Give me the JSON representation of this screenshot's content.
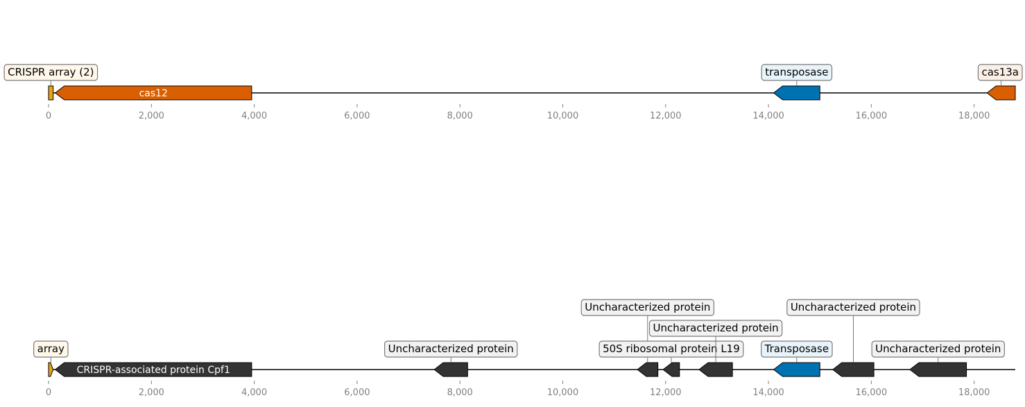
{
  "tracks": [
    {
      "id": "top",
      "axis": {
        "min": 0,
        "max": 18800,
        "ticks": [
          0,
          2000,
          4000,
          6000,
          8000,
          10000,
          12000,
          14000,
          16000,
          18000
        ],
        "tick_labels": [
          "0",
          "2,000",
          "4,000",
          "6,000",
          "8,000",
          "10,000",
          "12,000",
          "14,000",
          "16,000",
          "18,000"
        ]
      },
      "features": [
        {
          "name": "CRISPR array (2)",
          "start": 0,
          "end": 90,
          "strand": 0,
          "color": "#E8A317",
          "label": "CRISPR array (2)",
          "label_inside": false,
          "label_level": 0,
          "label_fill": "#FFF8EA"
        },
        {
          "name": "cas12",
          "start": 130,
          "end": 3950,
          "strand": -1,
          "color": "#D95F02",
          "label": "cas12",
          "label_inside": true
        },
        {
          "name": "transposase",
          "start": 14100,
          "end": 15000,
          "strand": -1,
          "color": "#0072B2",
          "label": "transposase",
          "label_inside": false,
          "label_level": 0,
          "label_fill": "#E8F3FA"
        },
        {
          "name": "cas13a",
          "start": 18250,
          "end": 18800,
          "strand": -1,
          "color": "#D95F02",
          "label": "cas13a",
          "label_inside": false,
          "label_level": 0,
          "label_fill": "#FCF0E6"
        }
      ]
    },
    {
      "id": "bottom",
      "axis": {
        "min": 0,
        "max": 18800,
        "ticks": [
          0,
          2000,
          4000,
          6000,
          8000,
          10000,
          12000,
          14000,
          16000,
          18000
        ],
        "tick_labels": [
          "0",
          "2,000",
          "4,000",
          "6,000",
          "8,000",
          "10,000",
          "12,000",
          "14,000",
          "16,000",
          "18,000"
        ]
      },
      "features": [
        {
          "name": "array",
          "start": 0,
          "end": 90,
          "strand": 1,
          "color": "#E8A317",
          "label": "array",
          "label_inside": false,
          "label_level": 0,
          "label_fill": "#FFF8EA"
        },
        {
          "name": "CRISPR-associated protein Cpf1",
          "start": 130,
          "end": 3950,
          "strand": -1,
          "color": "#333333",
          "label": "CRISPR-associated protein Cpf1",
          "label_inside": true
        },
        {
          "name": "Uncharacterized protein A",
          "start": 7500,
          "end": 8150,
          "strand": -1,
          "color": "#333333",
          "label": "Uncharacterized protein",
          "label_inside": false,
          "label_level": 0,
          "label_fill": "#F2F2F2"
        },
        {
          "name": "Uncharacterized protein B",
          "start": 11450,
          "end": 11850,
          "strand": -1,
          "color": "#333333",
          "label": "Uncharacterized protein",
          "label_inside": false,
          "label_level": 2,
          "label_fill": "#F2F2F2"
        },
        {
          "name": "50S ribosomal protein L19",
          "start": 11950,
          "end": 12270,
          "strand": -1,
          "color": "#333333",
          "label": "50S ribosomal protein L19",
          "label_inside": false,
          "label_level": 0,
          "label_fill": "#F2F2F2"
        },
        {
          "name": "Uncharacterized protein C",
          "start": 12650,
          "end": 13300,
          "strand": -1,
          "color": "#333333",
          "label": "Uncharacterized protein",
          "label_inside": false,
          "label_level": 1,
          "label_fill": "#F2F2F2"
        },
        {
          "name": "Transposase",
          "start": 14100,
          "end": 15000,
          "strand": -1,
          "color": "#0072B2",
          "label": "Transposase",
          "label_inside": false,
          "label_level": 0,
          "label_fill": "#E8F3FA"
        },
        {
          "name": "Uncharacterized protein D",
          "start": 15250,
          "end": 16050,
          "strand": -1,
          "color": "#333333",
          "label": "Uncharacterized protein",
          "label_inside": false,
          "label_level": 2,
          "label_fill": "#F2F2F2"
        },
        {
          "name": "Uncharacterized protein E",
          "start": 16750,
          "end": 17850,
          "strand": -1,
          "color": "#333333",
          "label": "Uncharacterized protein",
          "label_inside": false,
          "label_level": 0,
          "label_fill": "#F2F2F2"
        }
      ]
    }
  ]
}
